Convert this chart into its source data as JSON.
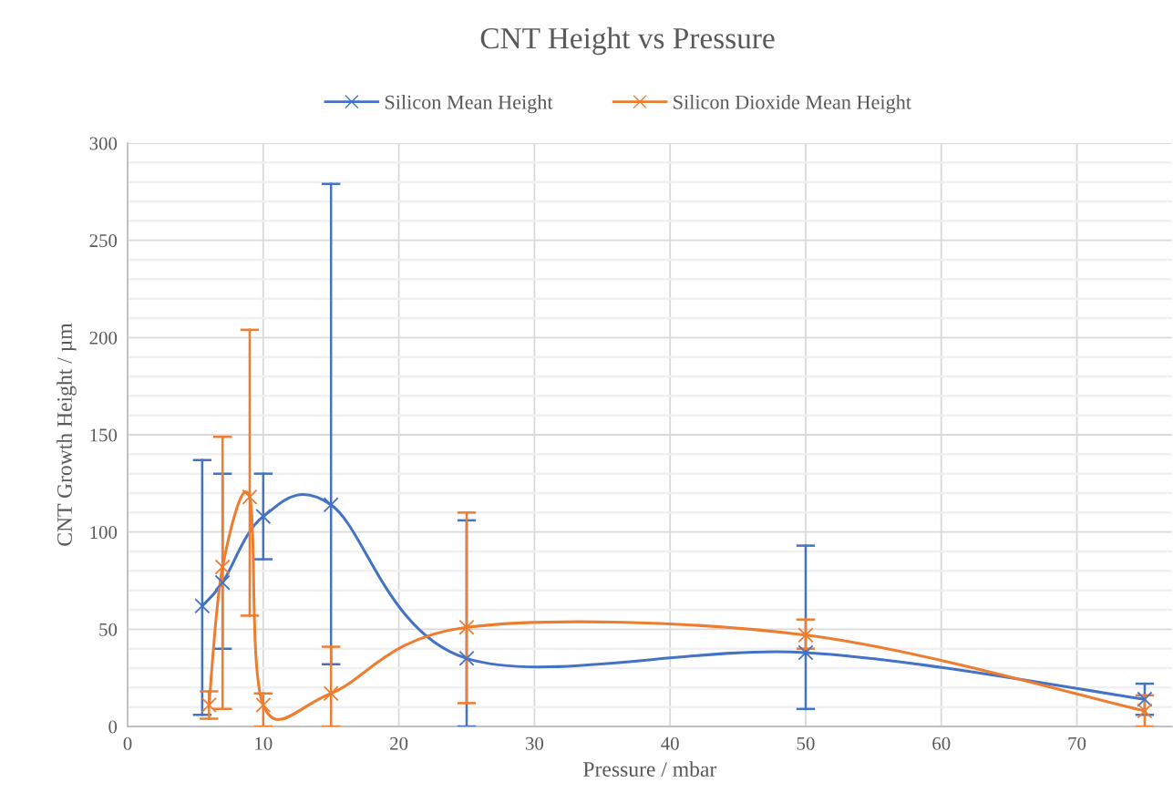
{
  "chart_data": {
    "type": "line",
    "title": "CNT Height vs Pressure",
    "xlabel": "Pressure / mbar",
    "ylabel": "CNT Growth Height / µm",
    "xlim": [
      0,
      77
    ],
    "xticks": [
      0,
      10,
      20,
      30,
      40,
      50,
      60,
      70
    ],
    "ylim": [
      0,
      300
    ],
    "yticks": [
      0,
      {
        "value": 10,
        "label": null
      },
      {
        "value": 20,
        "label": null
      },
      {
        "value": 30,
        "label": null
      },
      {
        "value": 40,
        "label": null
      },
      50,
      {
        "value": 60,
        "label": null
      },
      {
        "value": 70,
        "label": null
      },
      {
        "value": 80,
        "label": null
      },
      {
        "value": 90,
        "label": null
      },
      100,
      {
        "value": 110,
        "label": null
      },
      {
        "value": 120,
        "label": null
      },
      {
        "value": 130,
        "label": null
      },
      {
        "value": 140,
        "label": null
      },
      150,
      {
        "value": 160,
        "label": null
      },
      {
        "value": 170,
        "label": null
      },
      {
        "value": 180,
        "label": null
      },
      {
        "value": 190,
        "label": null
      },
      200,
      {
        "value": 210,
        "label": null
      },
      {
        "value": 220,
        "label": null
      },
      {
        "value": 230,
        "label": null
      },
      {
        "value": 240,
        "label": null
      },
      250,
      {
        "value": 260,
        "label": null
      },
      {
        "value": 270,
        "label": null
      },
      {
        "value": 280,
        "label": null
      },
      {
        "value": 290,
        "label": null
      },
      300
    ],
    "grid": true,
    "legend": "top",
    "marker": "cross",
    "line_style": "solid",
    "series": [
      {
        "name": "Silicon Mean Height",
        "color": "#4472c4",
        "x": [
          5.5,
          7,
          10,
          15,
          25,
          50,
          75
        ],
        "values": [
          62,
          74,
          108,
          114,
          35,
          38,
          14
        ],
        "errors": [
          [
            6,
            137
          ],
          [
            40,
            130
          ],
          [
            86,
            130
          ],
          [
            32,
            279
          ],
          [
            0,
            106
          ],
          [
            9,
            93
          ],
          [
            6,
            22
          ]
        ]
      },
      {
        "name": "Silicon Dioxide Mean Height",
        "color": "#ed7d31",
        "x": [
          6,
          7,
          9,
          10,
          15,
          25,
          50,
          75
        ],
        "values": [
          11,
          82,
          118,
          11,
          17,
          51,
          47,
          8
        ],
        "errors": [
          [
            4,
            18
          ],
          [
            9,
            149
          ],
          [
            57,
            204
          ],
          [
            0,
            17
          ],
          [
            0,
            41
          ],
          [
            12,
            110
          ],
          [
            40,
            55
          ],
          [
            0,
            16
          ]
        ]
      }
    ]
  }
}
